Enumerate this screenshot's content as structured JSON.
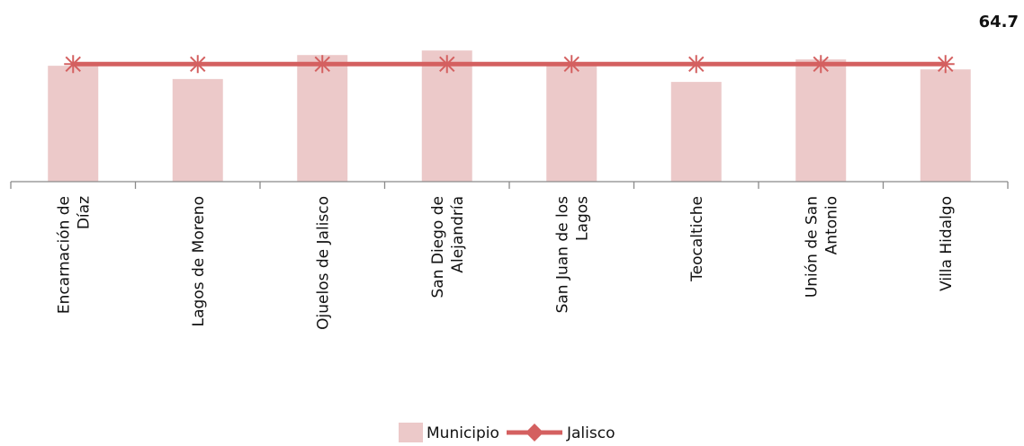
{
  "chart_data": {
    "type": "bar",
    "categories": [
      [
        "Encarnación de",
        "Díaz"
      ],
      [
        "Lagos de Moreno"
      ],
      [
        "Ojuelos de Jalisco"
      ],
      [
        "San Diego de",
        "Alejandría"
      ],
      [
        "San Juan de los",
        "Lagos"
      ],
      [
        "Teocaltiche"
      ],
      [
        "Unión de San",
        "Antonio"
      ],
      [
        "Villa Hidalgo"
      ]
    ],
    "series": [
      {
        "name": "Municipio",
        "type": "bar",
        "color": "#ecc9c9",
        "values": [
          63.8,
          56.5,
          69.7,
          72.2,
          64.4,
          54.9,
          67.3,
          61.8
        ]
      },
      {
        "name": "Jalisco",
        "type": "line",
        "color": "#d46060",
        "marker": "star",
        "values": [
          64.7,
          64.7,
          64.7,
          64.7,
          64.7,
          64.7,
          64.7,
          64.7
        ]
      }
    ],
    "reference_label": "64.7",
    "ylim": [
      0,
      100
    ],
    "title": "",
    "xlabel": "",
    "ylabel": "",
    "grid": false,
    "legend_position": "bottom-center"
  }
}
